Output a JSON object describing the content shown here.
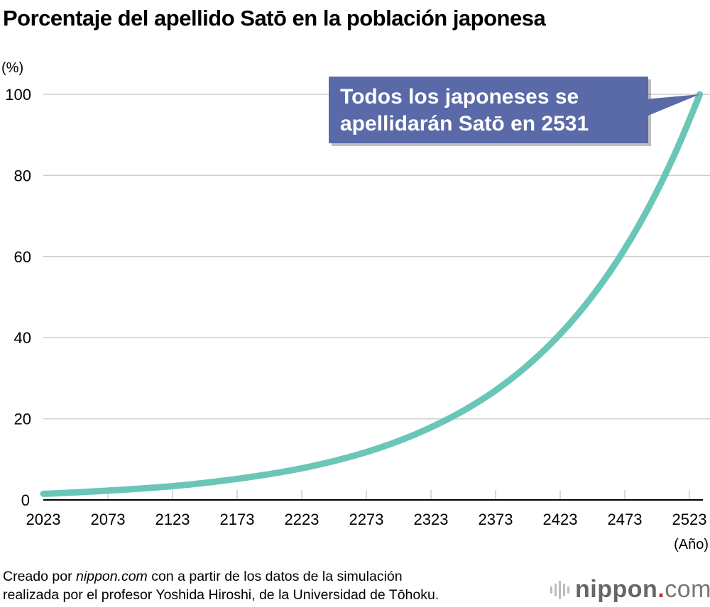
{
  "title": "Porcentaje del apellido Satō en la población japonesa",
  "footer": {
    "line1_prefix": "Creado por ",
    "line1_site": "nippon.com",
    "line1_suffix": " con a partir de los datos de la simulación",
    "line2": "realizada por el profesor Yoshida Hiroshi, de la Universidad de Tōhoku."
  },
  "logo": {
    "name": "nippon",
    "dot": ".",
    "tld": "com"
  },
  "chart_data": {
    "type": "line",
    "title": "Porcentaje del apellido Satō en la población japonesa",
    "ylabel": "(%)",
    "xlabel": "(Año)",
    "xlim": [
      2023,
      2531
    ],
    "ylim": [
      0,
      100
    ],
    "x_ticks": [
      2023,
      2073,
      2123,
      2173,
      2223,
      2273,
      2323,
      2373,
      2423,
      2473,
      2523
    ],
    "y_ticks": [
      0,
      20,
      40,
      60,
      80,
      100
    ],
    "grid": "horizontal",
    "line_color": "#6ac6b7",
    "annotation": {
      "lines": [
        "Todos los japoneses se",
        "apellidarán Satō en 2531"
      ],
      "color": "#5a6aa8",
      "points_to": [
        2531,
        100
      ]
    },
    "series": [
      {
        "x": [
          2023,
          2073,
          2123,
          2173,
          2223,
          2273,
          2323,
          2373,
          2423,
          2473,
          2523,
          2531
        ],
        "y": [
          1.5,
          2.3,
          3.4,
          5.2,
          7.8,
          11.8,
          17.9,
          27.0,
          40.9,
          61.9,
          93.7,
          100
        ]
      }
    ]
  }
}
